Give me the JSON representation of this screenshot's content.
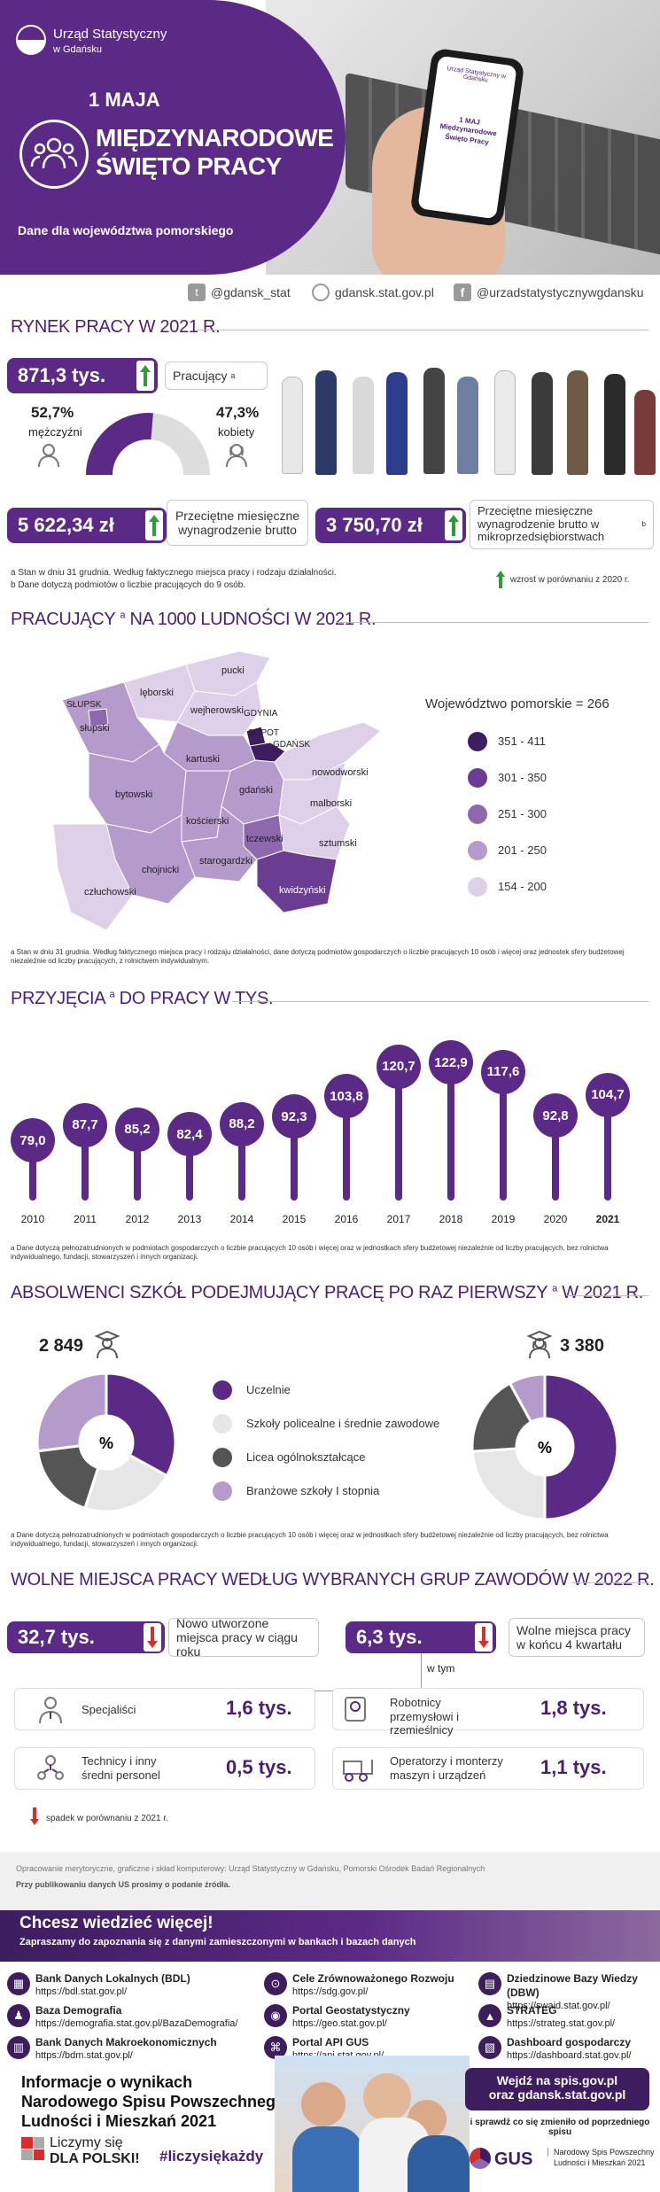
{
  "header": {
    "org_name": "Urząd Statystyczny",
    "org_sub": "w Gdańsku",
    "date": "1 MAJA",
    "title_line1": "MIĘDZYNARODOWE",
    "title_line2": "ŚWIĘTO PRACY",
    "subtitle": "Dane dla województwa pomorskiego",
    "phone_text": "1 MAJ Międzynarodowe Święto Pracy",
    "phone_logo": "Urząd Statystyczny w Gdańsku"
  },
  "social": {
    "twitter": "@gdansk_stat",
    "web": "gdansk.stat.gov.pl",
    "facebook": "@urzadstatystycznywgdansku"
  },
  "labor": {
    "title": "RYNEK PRACY W 2021 R.",
    "employed_value": "871,3 tys.",
    "employed_label": "Pracujący",
    "employed_sup": "a",
    "men_pct": "52,7%",
    "men_label": "mężczyźni",
    "women_pct": "47,3%",
    "women_label": "kobiety",
    "men_share": 52.7,
    "salary_value": "5 622,34 zł",
    "salary_label": "Przeciętne miesięczne wynagrodzenie brutto",
    "micro_value": "3 750,70 zł",
    "micro_label": "Przeciętne miesięczne wynagrodzenie brutto w mikroprzedsiębiorstwach",
    "micro_sup": "b",
    "note_a": "a Stan w dniu 31 grudnia. Według faktycznego miejsca pracy i rodzaju działalności.",
    "note_b": "b Dane dotyczą podmiotów o liczbie pracujących do 9 osób.",
    "growth_note": "wzrost w porównaniu z 2020 r."
  },
  "map": {
    "title": "PRACUJĄCY",
    "title_sup": "a",
    "title_rest": "NA 1000 LUDNOŚCI W 2021 R.",
    "region_label": "Województwo pomorskie = 266",
    "legend": [
      {
        "range": "351 - 411",
        "color": "#3d1d5e"
      },
      {
        "range": "301 - 350",
        "color": "#6a3d92"
      },
      {
        "range": "251 - 300",
        "color": "#8e68ad"
      },
      {
        "range": "201 - 250",
        "color": "#b59bcb"
      },
      {
        "range": "154 - 200",
        "color": "#ddd0e8"
      }
    ],
    "regions": [
      "pucki",
      "lęborski",
      "wejherowski",
      "SŁUPSK",
      "słupski",
      "GDYNIA",
      "SOPOT",
      "GDAŃSK",
      "kartuski",
      "nowodworski",
      "bytowski",
      "gdański",
      "malborski",
      "kościerski",
      "tczewski",
      "sztumski",
      "starogardzki",
      "chojnicki",
      "człuchowski",
      "kwidzyński"
    ],
    "note": "a Stan w dniu 31 grudnia. Według faktycznego miejsca pracy i rodzaju działalności, dane dotyczą podmiotów gospodarczych o liczbie pracujących 10 osób i więcej oraz jednostek sfery budżetowej niezależnie od liczby pracujących, z rolnictwem indywidualnym."
  },
  "hires": {
    "title": "PRZYJĘCIA",
    "title_sup": "a",
    "title_rest": "DO PRACY W TYS.",
    "note": "a Dane dotyczą pełnozatrudnionych w podmiotach gospodarczych o liczbie pracujących 10 osób i więcej oraz w jednostkach sfery budżetowej niezależnie od liczby pracujących, bez rolnictwa indywidualnego, fundacji, stowarzyszeń i innych organizacji."
  },
  "chart_data": {
    "type": "bar",
    "categories": [
      "2010",
      "2011",
      "2012",
      "2013",
      "2014",
      "2015",
      "2016",
      "2017",
      "2018",
      "2019",
      "2020",
      "2021"
    ],
    "values": [
      79.0,
      87.7,
      85.2,
      82.4,
      88.2,
      92.3,
      103.8,
      120.7,
      122.9,
      117.6,
      92.8,
      104.7
    ],
    "labels": [
      "79,0",
      "87,7",
      "85,2",
      "82,4",
      "88,2",
      "92,3",
      "103,8",
      "120,7",
      "122,9",
      "117,6",
      "92,8",
      "104,7"
    ],
    "title": "PRZYJĘCIA DO PRACY W TYS."
  },
  "graduates": {
    "title": "ABSOLWENCI SZKÓŁ PODEJMUJĄCY PRACĘ PO RAZ PIERWSZY",
    "title_sup": "a",
    "title_rest": "W 2021 R.",
    "men_count": "2 849",
    "women_count": "3 380",
    "pct_symbol": "%",
    "legend": [
      {
        "label": "Uczelnie",
        "color": "#5b2a86"
      },
      {
        "label": "Szkoły policealne i średnie zawodowe",
        "color": "#e6e6e6"
      },
      {
        "label": "Licea ogólnokształcące",
        "color": "#555555"
      },
      {
        "label": "Branżowe szkoły I stopnia",
        "color": "#b59bcb"
      }
    ],
    "men_shares": [
      33,
      22,
      18,
      27
    ],
    "women_shares": [
      50,
      24,
      18,
      8
    ],
    "note": "a Dane dotyczą pełnozatrudnionych w podmiotach gospodarczych o liczbie pracujących 10 osób i więcej oraz w jednostkach sfery budżetowej niezależnie od liczby pracujących, bez rolnictwa indywidualnego, fundacji, stowarzyszeń i innych organizacji."
  },
  "vacancies": {
    "title": "WOLNE MIEJSCA PRACY WEDŁUG WYBRANYCH GRUP ZAWODÓW W 2022 R.",
    "new_value": "32,7 tys.",
    "new_label": "Nowo utworzone miejsca pracy w ciągu roku",
    "free_value": "6,3 tys.",
    "free_label": "Wolne miejsca pracy w końcu 4 kwartału",
    "of_which": "w tym",
    "groups": [
      {
        "label": "Specjaliści",
        "value": "1,6 tys."
      },
      {
        "label": "Robotnicy przemysłowi i rzemieślnicy",
        "value": "1,8 tys."
      },
      {
        "label": "Technicy i inny średni personel",
        "value": "0,5 tys."
      },
      {
        "label": "Operatorzy i monterzy maszyn i urządzeń",
        "value": "1,1 tys."
      }
    ],
    "decline_note": "spadek w porównaniu z 2021 r."
  },
  "credits": {
    "line1": "Opracowanie merytoryczne, graficzne i skład komputerowy: Urząd Statystyczny w Gdańsku, Pomorski Ośrodek Badań Regionalnych",
    "line2": "Przy publikowaniu danych US prosimy o podanie źródła."
  },
  "more": {
    "title": "Chcesz wiedzieć więcej!",
    "subtitle": "Zapraszamy do zapoznania się z danymi zamieszczonymi w bankach i bazach danych",
    "dbs": [
      {
        "name": "Bank Danych Lokalnych (BDL)",
        "url": "https://bdl.stat.gov.pl/"
      },
      {
        "name": "Cele Zrównoważonego Rozwoju",
        "url": "https://sdg.gov.pl/"
      },
      {
        "name": "Dziedzinowe Bazy Wiedzy (DBW)",
        "url": "https://swaid.stat.gov.pl/"
      },
      {
        "name": "Baza Demografia",
        "url": "https://demografia.stat.gov.pl/BazaDemografia/"
      },
      {
        "name": "Portal Geostatystyczny",
        "url": "https://geo.stat.gov.pl/"
      },
      {
        "name": "STRATEG",
        "url": "https://strateg.stat.gov.pl/"
      },
      {
        "name": "Bank Danych Makroekonomicznych",
        "url": "https://bdm.stat.gov.pl/"
      },
      {
        "name": "Portal API GUS",
        "url": "https://api.stat.gov.pl/"
      },
      {
        "name": "Dashboard gospodarczy",
        "url": "https://dashboard.stat.gov.pl/"
      }
    ]
  },
  "footer": {
    "census_line1": "Informacje o wynikach",
    "census_line2": "Narodowego Spisu Powszechnego",
    "census_line3": "Ludności i Mieszkań 2021",
    "count_line1": "Liczymy się",
    "count_line2": "DLA POLSKI!",
    "hashtag": "#liczysiękażdy",
    "visit_line1": "Wejdź na spis.gov.pl",
    "visit_line2": "oraz gdansk.stat.gov.pl",
    "check": "i sprawdź co się zmieniło od poprzedniego spisu",
    "gus": "GUS",
    "nsp_line1": "Narodowy Spis Powszechny",
    "nsp_line2": "Ludności i Mieszkań 2021"
  }
}
